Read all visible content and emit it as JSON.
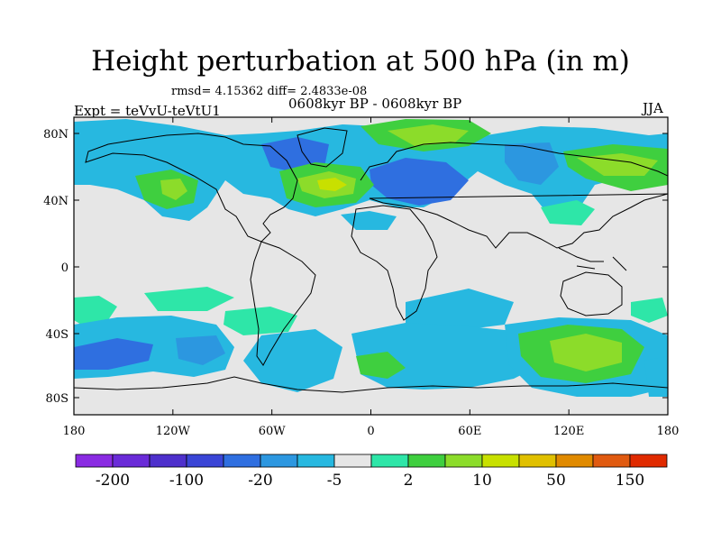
{
  "title": "Height perturbation at 500 hPa (in m)",
  "stats": "rmsd= 4.15362 diff= 2.4833e-08",
  "period": "0608kyr BP - 0608kyr BP",
  "expt": "Expt = teVvU-teVtU1",
  "season": "JJA",
  "axes": {
    "lat_ticks": [
      "80N",
      "40N",
      "0",
      "40S",
      "80S"
    ],
    "lon_ticks": [
      "180",
      "120W",
      "60W",
      "0",
      "60E",
      "120E",
      "180"
    ]
  },
  "colorbar": {
    "colors": [
      "#8a2be2",
      "#6a2bd8",
      "#4e30cc",
      "#3a45d6",
      "#2f6fe0",
      "#2c97e0",
      "#27b8e0",
      "#e6e6e6",
      "#2ee6a8",
      "#3fcf3f",
      "#8cdc2a",
      "#c8e000",
      "#e0c000",
      "#e08a00",
      "#e05a10",
      "#e02a00"
    ],
    "labels": [
      "-200",
      "-100",
      "-20",
      "-5",
      "2",
      "10",
      "50",
      "150"
    ]
  }
}
